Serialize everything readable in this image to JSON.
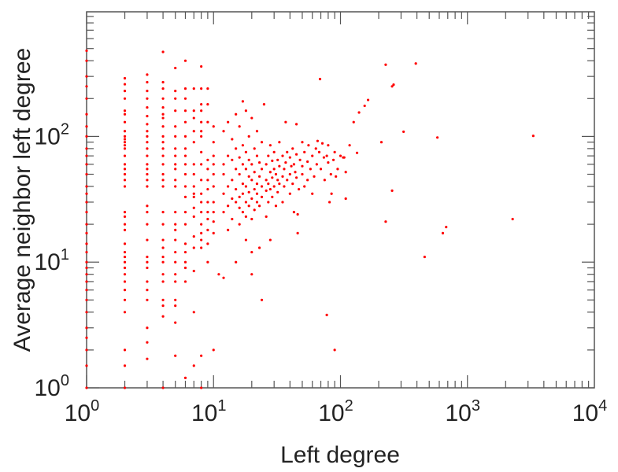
{
  "chart_data": {
    "type": "scatter",
    "title": "",
    "xlabel": "Left degree",
    "ylabel": "Average neighbor left degree",
    "xscale": "log",
    "yscale": "log",
    "xlim": [
      1,
      10000
    ],
    "ylim": [
      1,
      980
    ],
    "grid": false,
    "legend": "none",
    "marker_color": "#ff0000",
    "axis_color": "#555555",
    "x_ticks": [
      {
        "value": 1,
        "base": "10",
        "exp": "0"
      },
      {
        "value": 10,
        "base": "10",
        "exp": "1"
      },
      {
        "value": 100,
        "base": "10",
        "exp": "2"
      },
      {
        "value": 1000,
        "base": "10",
        "exp": "3"
      },
      {
        "value": 10000,
        "base": "10",
        "exp": "4"
      }
    ],
    "y_ticks": [
      {
        "value": 1,
        "base": "10",
        "exp": "0"
      },
      {
        "value": 10,
        "base": "10",
        "exp": "1"
      },
      {
        "value": 100,
        "base": "10",
        "exp": "2"
      }
    ],
    "columns": [
      {
        "x": 1,
        "y": [
          1,
          1.5,
          2,
          2.5,
          3,
          4,
          5,
          6,
          7,
          8,
          9,
          10,
          12,
          14,
          17,
          20,
          25,
          30,
          35,
          40,
          50,
          60,
          70,
          80,
          100,
          120,
          150,
          200,
          250,
          300,
          400,
          480
        ]
      },
      {
        "x": 2,
        "y": [
          1,
          1.5,
          2,
          4,
          5,
          6,
          7,
          8,
          9,
          10,
          11,
          12,
          14,
          18,
          20,
          23,
          25,
          40,
          45,
          50,
          55,
          60,
          70,
          80,
          85,
          90,
          95,
          100,
          110,
          130,
          150,
          160,
          200,
          230,
          260,
          290
        ]
      },
      {
        "x": 3,
        "y": [
          1.7,
          2.3,
          3,
          5,
          6,
          7,
          9,
          10,
          11,
          15,
          20,
          25,
          28,
          40,
          45,
          50,
          55,
          60,
          70,
          80,
          90,
          100,
          110,
          125,
          145,
          170,
          200,
          230,
          270,
          310
        ]
      },
      {
        "x": 4,
        "y": [
          1,
          3.7,
          4.5,
          5,
          7,
          8,
          10,
          11,
          13,
          15,
          20,
          25,
          40,
          45,
          50,
          60,
          70,
          80,
          90,
          100,
          120,
          140,
          150,
          170,
          200,
          240,
          270,
          470
        ]
      },
      {
        "x": 5,
        "y": [
          1.8,
          3.3,
          4.5,
          5,
          7,
          8,
          10,
          12,
          15,
          18,
          20,
          25,
          40,
          45,
          55,
          60,
          70,
          80,
          100,
          120,
          160,
          200,
          230,
          350
        ]
      },
      {
        "x": 6,
        "y": [
          1.2,
          7,
          9,
          10,
          12,
          14,
          20,
          25,
          33,
          40,
          50,
          60,
          70,
          80,
          100,
          130,
          160,
          200,
          240,
          400
        ]
      },
      {
        "x": 7,
        "y": [
          1.5,
          4,
          8.5,
          13,
          16,
          23,
          27,
          33,
          35,
          40,
          50,
          60,
          90,
          110,
          140,
          160,
          240
        ]
      },
      {
        "x": 8,
        "y": [
          1,
          1.8,
          13,
          15,
          17,
          20,
          25,
          30,
          35,
          45,
          60,
          75,
          100,
          110,
          130,
          160,
          180,
          240,
          360
        ]
      },
      {
        "x": 9,
        "y": [
          10,
          14,
          18,
          22,
          25,
          30,
          38,
          45,
          55,
          65,
          130,
          180,
          240
        ]
      },
      {
        "x": 10,
        "y": [
          2,
          17,
          21,
          25,
          30,
          40,
          50,
          60,
          70,
          90,
          120
        ]
      }
    ],
    "points": [
      [
        11,
        8
      ],
      [
        12,
        7.5
      ],
      [
        12,
        25
      ],
      [
        12,
        35
      ],
      [
        12,
        50
      ],
      [
        12,
        60
      ],
      [
        12,
        110
      ],
      [
        13,
        18
      ],
      [
        13,
        28
      ],
      [
        13,
        40
      ],
      [
        13,
        70
      ],
      [
        13,
        130
      ],
      [
        14,
        22
      ],
      [
        14,
        32
      ],
      [
        14,
        45
      ],
      [
        14,
        65
      ],
      [
        14,
        95
      ],
      [
        15,
        10
      ],
      [
        15,
        30
      ],
      [
        15,
        38
      ],
      [
        15,
        55
      ],
      [
        15,
        80
      ],
      [
        15,
        150
      ],
      [
        16,
        20
      ],
      [
        16,
        27
      ],
      [
        16,
        33
      ],
      [
        16,
        50
      ],
      [
        16,
        68
      ],
      [
        16,
        120
      ],
      [
        17,
        25
      ],
      [
        17,
        35
      ],
      [
        17,
        42
      ],
      [
        17,
        60
      ],
      [
        17,
        85
      ],
      [
        17,
        190
      ],
      [
        18,
        15
      ],
      [
        18,
        23
      ],
      [
        18,
        30
      ],
      [
        18,
        40
      ],
      [
        18,
        55
      ],
      [
        18,
        75
      ],
      [
        18,
        160
      ],
      [
        19,
        28
      ],
      [
        19,
        36
      ],
      [
        19,
        48
      ],
      [
        19,
        65
      ],
      [
        19,
        100
      ],
      [
        20,
        8
      ],
      [
        20,
        12
      ],
      [
        20,
        22
      ],
      [
        20,
        32
      ],
      [
        20,
        45
      ],
      [
        20,
        60
      ],
      [
        20,
        140
      ],
      [
        21,
        26
      ],
      [
        21,
        38
      ],
      [
        21,
        52
      ],
      [
        21,
        80
      ],
      [
        22,
        30
      ],
      [
        22,
        35
      ],
      [
        22,
        42
      ],
      [
        22,
        70
      ],
      [
        22,
        110
      ],
      [
        23,
        13
      ],
      [
        23,
        28
      ],
      [
        23,
        48
      ],
      [
        23,
        62
      ],
      [
        24,
        33
      ],
      [
        24,
        40
      ],
      [
        24,
        55
      ],
      [
        24,
        90
      ],
      [
        25,
        180
      ],
      [
        26,
        23
      ],
      [
        26,
        37
      ],
      [
        26,
        45
      ],
      [
        26,
        60
      ],
      [
        27,
        30
      ],
      [
        27,
        42
      ],
      [
        27,
        70
      ],
      [
        28,
        15
      ],
      [
        28,
        38
      ],
      [
        28,
        52
      ],
      [
        28,
        85
      ],
      [
        29,
        33
      ],
      [
        29,
        47
      ],
      [
        29,
        64
      ],
      [
        30,
        40
      ],
      [
        30,
        55
      ],
      [
        30,
        75
      ],
      [
        31,
        28
      ],
      [
        31,
        50
      ],
      [
        32,
        36
      ],
      [
        32,
        45
      ],
      [
        32,
        65
      ],
      [
        33,
        42
      ],
      [
        33,
        58
      ],
      [
        33,
        90
      ],
      [
        35,
        30
      ],
      [
        35,
        48
      ],
      [
        35,
        70
      ],
      [
        36,
        40
      ],
      [
        36,
        55
      ],
      [
        37,
        62
      ],
      [
        37,
        130
      ],
      [
        38,
        45
      ],
      [
        38,
        75
      ],
      [
        40,
        35
      ],
      [
        40,
        50
      ],
      [
        40,
        68
      ],
      [
        41,
        58
      ],
      [
        42,
        42
      ],
      [
        42,
        80
      ],
      [
        43,
        25
      ],
      [
        43,
        60
      ],
      [
        44,
        52
      ],
      [
        45,
        47
      ],
      [
        45,
        72
      ],
      [
        45,
        125
      ],
      [
        46,
        17
      ],
      [
        46,
        24
      ],
      [
        47,
        38
      ],
      [
        48,
        65
      ],
      [
        50,
        50
      ],
      [
        50,
        58
      ],
      [
        50,
        90
      ],
      [
        52,
        40
      ],
      [
        52,
        75
      ],
      [
        55,
        63
      ],
      [
        55,
        45
      ],
      [
        56,
        85
      ],
      [
        58,
        55
      ],
      [
        60,
        70
      ],
      [
        60,
        35
      ],
      [
        62,
        48
      ],
      [
        64,
        80
      ],
      [
        65,
        60
      ],
      [
        66,
        92
      ],
      [
        68,
        75
      ],
      [
        70,
        55
      ],
      [
        72,
        88
      ],
      [
        74,
        68
      ],
      [
        75,
        45
      ],
      [
        78,
        70
      ],
      [
        80,
        62
      ],
      [
        80,
        85
      ],
      [
        82,
        30
      ],
      [
        84,
        50
      ],
      [
        85,
        35
      ],
      [
        88,
        65
      ],
      [
        90,
        75
      ],
      [
        92,
        48
      ],
      [
        95,
        55
      ],
      [
        100,
        70
      ],
      [
        105,
        68
      ],
      [
        110,
        32
      ],
      [
        110,
        52
      ],
      [
        118,
        85
      ],
      [
        127,
        130
      ],
      [
        140,
        155
      ],
      [
        155,
        175
      ],
      [
        165,
        195
      ],
      [
        24,
        5
      ],
      [
        78,
        3.8
      ],
      [
        90,
        2
      ],
      [
        69,
        286
      ],
      [
        227,
        372
      ],
      [
        392,
        380
      ],
      [
        255,
        250
      ],
      [
        262,
        258
      ],
      [
        314,
        109
      ],
      [
        580,
        98
      ],
      [
        3300,
        101
      ],
      [
        210,
        90
      ],
      [
        255,
        37
      ],
      [
        227,
        21
      ],
      [
        2270,
        22
      ],
      [
        680,
        19
      ],
      [
        640,
        17
      ],
      [
        460,
        11
      ],
      [
        135,
        74
      ],
      [
        107,
        68
      ]
    ]
  }
}
